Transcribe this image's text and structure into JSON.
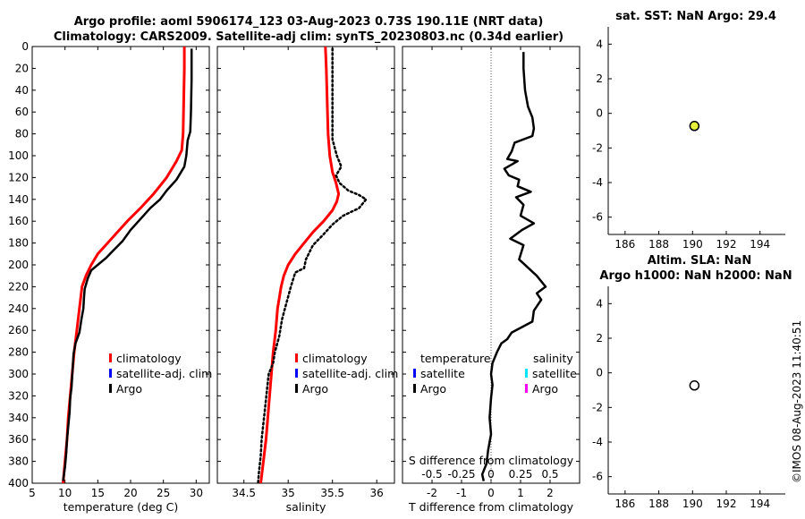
{
  "titles": {
    "line1": "Argo profile: aoml 5906174_123 03-Aug-2023 0.73S 190.11E (NRT data)",
    "line2": "Climatology: CARS2009. Satellite-adj clim: synTS_20230803.nc (0.34d earlier)"
  },
  "stamp": "©IMOS 08-Aug-2023 11:40:51",
  "colors": {
    "climatology": "#ff0000",
    "satellite": "#0000ff",
    "argo": "#000000",
    "sat_salinity": "#00e5ff",
    "argo_salinity_diff": "#ff00ff",
    "marker_fill": "#e6f03c"
  },
  "chart_data": [
    {
      "id": "temperature",
      "type": "line",
      "xlabel": "temperature (deg C)",
      "xlim": [
        5,
        32
      ],
      "xticks": [
        5,
        10,
        15,
        20,
        25,
        30
      ],
      "ylim": [
        0,
        400
      ],
      "yticks": [
        0,
        20,
        40,
        60,
        80,
        100,
        120,
        140,
        160,
        180,
        200,
        220,
        240,
        260,
        280,
        300,
        320,
        340,
        360,
        380,
        400
      ],
      "legend": [
        "climatology",
        "satellite-adj. clim",
        "Argo"
      ],
      "series": [
        {
          "name": "climatology",
          "style": "solid",
          "points": [
            [
              28.2,
              0
            ],
            [
              28.2,
              20
            ],
            [
              28.1,
              50
            ],
            [
              28.0,
              80
            ],
            [
              27.8,
              95
            ],
            [
              27.0,
              105
            ],
            [
              25.5,
              120
            ],
            [
              23.5,
              135
            ],
            [
              21.5,
              148
            ],
            [
              19.5,
              160
            ],
            [
              18,
              170
            ],
            [
              16.5,
              180
            ],
            [
              15,
              190
            ],
            [
              14,
              200
            ],
            [
              13.2,
              210
            ],
            [
              12.6,
              220
            ],
            [
              12.2,
              240
            ],
            [
              11.8,
              260
            ],
            [
              11.4,
              280
            ],
            [
              11.1,
              300
            ],
            [
              10.8,
              320
            ],
            [
              10.5,
              340
            ],
            [
              10.3,
              360
            ],
            [
              10.0,
              380
            ],
            [
              9.7,
              400
            ]
          ]
        },
        {
          "name": "Argo",
          "style": "solid",
          "points": [
            [
              29.3,
              2
            ],
            [
              29.3,
              30
            ],
            [
              29.2,
              60
            ],
            [
              29.1,
              78
            ],
            [
              28.7,
              86
            ],
            [
              28.5,
              100
            ],
            [
              28.2,
              110
            ],
            [
              27.0,
              122
            ],
            [
              25.5,
              132
            ],
            [
              24.5,
              140
            ],
            [
              23,
              148
            ],
            [
              21.5,
              158
            ],
            [
              20,
              168
            ],
            [
              18.8,
              178
            ],
            [
              17.5,
              186
            ],
            [
              16.2,
              194
            ],
            [
              15.0,
              200
            ],
            [
              14.0,
              205
            ],
            [
              13.5,
              212
            ],
            [
              13.0,
              222
            ],
            [
              12.9,
              230
            ],
            [
              12.8,
              240
            ],
            [
              12.5,
              250
            ],
            [
              12.2,
              262
            ],
            [
              11.6,
              272
            ],
            [
              11.3,
              282
            ],
            [
              11.2,
              292
            ],
            [
              11.1,
              302
            ],
            [
              11.0,
              312
            ],
            [
              10.8,
              322
            ],
            [
              10.7,
              335
            ],
            [
              10.5,
              348
            ],
            [
              10.3,
              360
            ],
            [
              10.2,
              372
            ],
            [
              10.0,
              385
            ],
            [
              9.7,
              398
            ]
          ]
        }
      ]
    },
    {
      "id": "salinity",
      "type": "line",
      "xlabel": "salinity",
      "xlim": [
        34.2,
        36.2
      ],
      "xticks": [
        34.5,
        35,
        35.5,
        36
      ],
      "ylim": [
        0,
        400
      ],
      "legend": [
        "climatology",
        "satellite-adj. clim",
        "Argo"
      ],
      "series": [
        {
          "name": "climatology",
          "style": "solid",
          "points": [
            [
              35.42,
              0
            ],
            [
              35.43,
              20
            ],
            [
              35.44,
              50
            ],
            [
              35.45,
              80
            ],
            [
              35.47,
              100
            ],
            [
              35.5,
              115
            ],
            [
              35.54,
              125
            ],
            [
              35.57,
              135
            ],
            [
              35.55,
              142
            ],
            [
              35.5,
              150
            ],
            [
              35.4,
              160
            ],
            [
              35.28,
              170
            ],
            [
              35.18,
              180
            ],
            [
              35.08,
              190
            ],
            [
              35.0,
              200
            ],
            [
              34.95,
              210
            ],
            [
              34.92,
              220
            ],
            [
              34.88,
              240
            ],
            [
              34.86,
              260
            ],
            [
              34.83,
              280
            ],
            [
              34.81,
              300
            ],
            [
              34.79,
              320
            ],
            [
              34.77,
              340
            ],
            [
              34.75,
              360
            ],
            [
              34.72,
              380
            ],
            [
              34.69,
              400
            ]
          ]
        },
        {
          "name": "Argo",
          "style": "dotted",
          "points": [
            [
              35.5,
              2
            ],
            [
              35.5,
              30
            ],
            [
              35.5,
              60
            ],
            [
              35.5,
              85
            ],
            [
              35.55,
              100
            ],
            [
              35.6,
              110
            ],
            [
              35.54,
              118
            ],
            [
              35.58,
              125
            ],
            [
              35.68,
              132
            ],
            [
              35.8,
              136
            ],
            [
              35.88,
              140
            ],
            [
              35.8,
              148
            ],
            [
              35.62,
              155
            ],
            [
              35.5,
              163
            ],
            [
              35.4,
              172
            ],
            [
              35.28,
              182
            ],
            [
              35.2,
              195
            ],
            [
              35.18,
              203
            ],
            [
              35.08,
              207
            ],
            [
              35.03,
              220
            ],
            [
              34.98,
              235
            ],
            [
              34.93,
              250
            ],
            [
              34.9,
              265
            ],
            [
              34.85,
              280
            ],
            [
              34.83,
              290
            ],
            [
              34.78,
              300
            ],
            [
              34.76,
              315
            ],
            [
              34.74,
              330
            ],
            [
              34.72,
              345
            ],
            [
              34.7,
              360
            ],
            [
              34.69,
              375
            ],
            [
              34.67,
              390
            ],
            [
              34.66,
              400
            ]
          ]
        }
      ]
    },
    {
      "id": "difference",
      "type": "line",
      "xlabel": "T difference from climatology",
      "xlabel_top": "S difference from climatology",
      "xlim": [
        -3,
        3
      ],
      "xticks": [
        -2,
        -1,
        0,
        1,
        2
      ],
      "s_ticks": [
        "-0.5",
        "-0.25",
        "0",
        "0.25",
        "0.5"
      ],
      "ylim": [
        0,
        400
      ],
      "legend_left_title": "temperature",
      "legend_left": [
        "satellite",
        "Argo"
      ],
      "legend_right_title": "salinity",
      "legend_right": [
        "satellite",
        "Argo"
      ],
      "series": [
        {
          "name": "T difference",
          "style": "solid",
          "points": [
            [
              1.1,
              5
            ],
            [
              1.1,
              20
            ],
            [
              1.15,
              40
            ],
            [
              1.25,
              55
            ],
            [
              1.4,
              65
            ],
            [
              1.45,
              75
            ],
            [
              1.4,
              82
            ],
            [
              0.8,
              88
            ],
            [
              0.7,
              96
            ],
            [
              0.55,
              103
            ],
            [
              0.9,
              105
            ],
            [
              0.45,
              112
            ],
            [
              0.6,
              118
            ],
            [
              0.95,
              122
            ],
            [
              0.9,
              128
            ],
            [
              1.35,
              133
            ],
            [
              0.85,
              138
            ],
            [
              1.1,
              145
            ],
            [
              1.0,
              155
            ],
            [
              1.45,
              162
            ],
            [
              1.05,
              168
            ],
            [
              0.65,
              176
            ],
            [
              1.1,
              182
            ],
            [
              0.95,
              195
            ],
            [
              1.55,
              210
            ],
            [
              1.85,
              220
            ],
            [
              1.55,
              226
            ],
            [
              1.7,
              232
            ],
            [
              1.45,
              242
            ],
            [
              1.4,
              252
            ],
            [
              0.7,
              262
            ],
            [
              0.55,
              268
            ],
            [
              0.35,
              272
            ],
            [
              0.2,
              280
            ],
            [
              0.05,
              290
            ],
            [
              0.0,
              300
            ],
            [
              0.05,
              310
            ],
            [
              0.0,
              322
            ],
            [
              -0.05,
              340
            ],
            [
              0.0,
              355
            ],
            [
              -0.1,
              370
            ],
            [
              -0.15,
              382
            ],
            [
              -0.3,
              392
            ],
            [
              -0.25,
              398
            ]
          ]
        }
      ]
    },
    {
      "id": "sst",
      "type": "scatter",
      "title": "sat. SST: NaN Argo: 29.4",
      "xlim": [
        185,
        195.5
      ],
      "xticks": [
        186,
        188,
        190,
        192,
        194
      ],
      "ylim": [
        -7,
        5
      ],
      "yticks": [
        -6,
        -4,
        -2,
        0,
        2,
        4
      ],
      "points": [
        {
          "x": 190.11,
          "y": -0.73,
          "filled": true
        }
      ]
    },
    {
      "id": "sla",
      "type": "scatter",
      "title": "Altim. SLA: NaN",
      "title2": "Argo h1000: NaN h2000: NaN",
      "xlim": [
        185,
        195.5
      ],
      "xticks": [
        186,
        188,
        190,
        192,
        194
      ],
      "ylim": [
        -7,
        5
      ],
      "yticks": [
        -6,
        -4,
        -2,
        0,
        2,
        4
      ],
      "points": [
        {
          "x": 190.11,
          "y": -0.73,
          "filled": false
        }
      ]
    }
  ]
}
